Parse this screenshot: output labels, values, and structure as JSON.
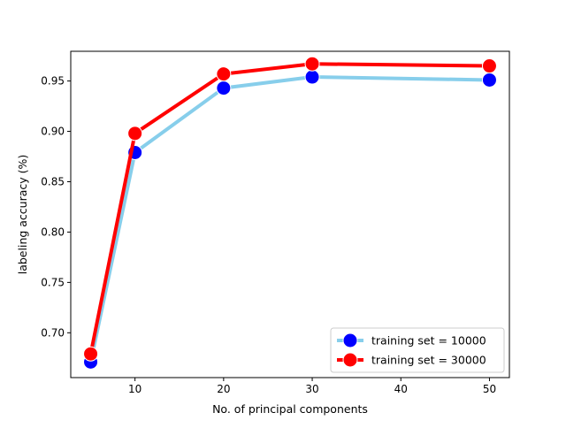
{
  "chart_data": {
    "type": "line",
    "title": "",
    "xlabel": "No. of principal components",
    "ylabel": "labeling accuracy (%)",
    "xlim": [
      2.75,
      52.25
    ],
    "ylim": [
      0.6555,
      0.9795
    ],
    "xticks": [
      10,
      20,
      30,
      40,
      50
    ],
    "yticks": [
      0.7,
      0.75,
      0.8,
      0.85,
      0.9,
      0.95
    ],
    "xtick_labels": [
      "10",
      "20",
      "30",
      "40",
      "50"
    ],
    "ytick_labels": [
      "0.70",
      "0.75",
      "0.80",
      "0.85",
      "0.90",
      "0.95"
    ],
    "grid": false,
    "legend_position": "lower-right",
    "x": [
      5,
      10,
      20,
      30,
      50
    ],
    "series": [
      {
        "name": "training set = 10000",
        "values": [
          0.671,
          0.879,
          0.943,
          0.954,
          0.951
        ],
        "line_color": "#87ceeb",
        "marker_color": "#0000ff"
      },
      {
        "name": "training set = 30000",
        "values": [
          0.679,
          0.898,
          0.957,
          0.967,
          0.965
        ],
        "line_color": "#ff0000",
        "marker_color": "#ff0000"
      }
    ]
  }
}
